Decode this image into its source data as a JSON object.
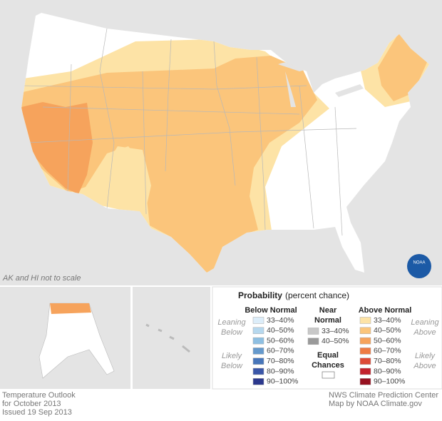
{
  "map_note": "AK and HI not to scale",
  "logo": "NOAA",
  "legend": {
    "title": "Probability",
    "subtitle": "(percent chance)",
    "columns": [
      {
        "title_lines": [
          "Below Normal"
        ],
        "items": [
          {
            "label": "33–40%",
            "color": "#dcedf9"
          },
          {
            "label": "40–50%",
            "color": "#b6d8ee"
          },
          {
            "label": "50–60%",
            "color": "#8ebfe2"
          },
          {
            "label": "60–70%",
            "color": "#6599cc"
          },
          {
            "label": "70–80%",
            "color": "#4876ba"
          },
          {
            "label": "80–90%",
            "color": "#3a56a8"
          },
          {
            "label": "90–100%",
            "color": "#2b388d"
          }
        ]
      },
      {
        "title_lines": [
          "Near",
          "Normal"
        ],
        "items": [
          {
            "label": "33–40%",
            "color": "#c8c8c8"
          },
          {
            "label": "40–50%",
            "color": "#9a9a9a"
          }
        ]
      },
      {
        "title_lines": [
          "Above Normal"
        ],
        "items": [
          {
            "label": "33–40%",
            "color": "#fde3a6"
          },
          {
            "label": "40–50%",
            "color": "#fbc57b"
          },
          {
            "label": "50–60%",
            "color": "#f6a35c"
          },
          {
            "label": "60–70%",
            "color": "#ee7b44"
          },
          {
            "label": "70–80%",
            "color": "#dd4a37"
          },
          {
            "label": "80–90%",
            "color": "#c2212b"
          },
          {
            "label": "90–100%",
            "color": "#96101f"
          }
        ]
      }
    ],
    "equal_chances_lines": [
      "Equal",
      "Chances"
    ],
    "leaning_below": [
      "Leaning",
      "Below"
    ],
    "likely_below": [
      "Likely",
      "Below"
    ],
    "leaning_above": [
      "Leaning",
      "Above"
    ],
    "likely_above": [
      "Likely",
      "Above"
    ]
  },
  "footer": {
    "left": [
      "Temperature Outlook",
      "for October 2013",
      "Issued 19 Sep 2013"
    ],
    "right": [
      "NWS Climate Prediction Center",
      "Map by NOAA Climate.gov"
    ]
  }
}
